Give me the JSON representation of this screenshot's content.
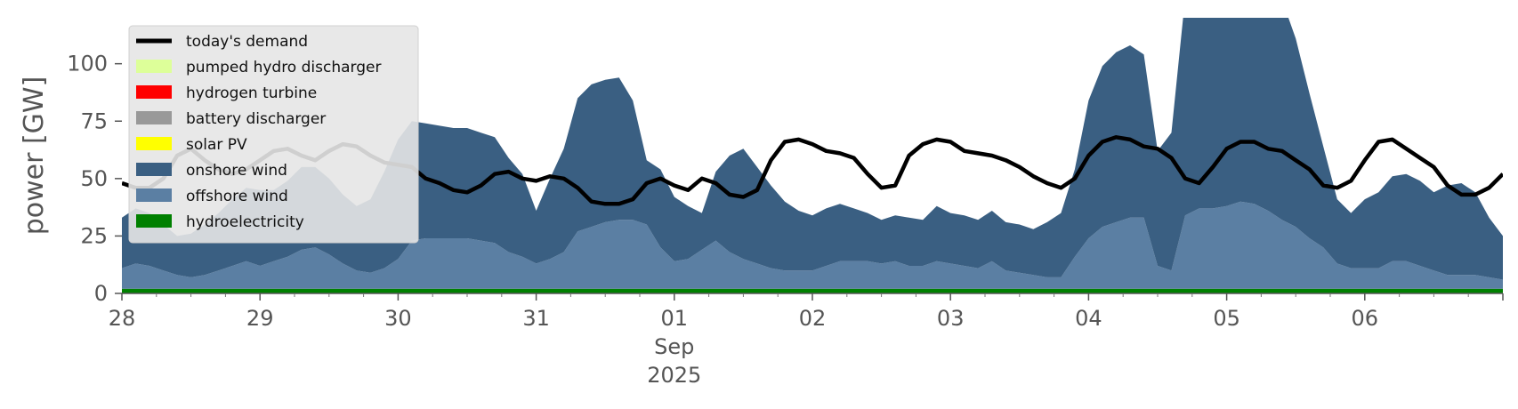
{
  "chart_data": {
    "type": "area",
    "ylabel": "power [GW]",
    "ylim": [
      0,
      120
    ],
    "x_unit": "day (Aug 28 2025 = 0)",
    "xlim": [
      0,
      10
    ],
    "yticks": [
      0,
      25,
      50,
      75,
      100
    ],
    "xticks": [
      {
        "x": 0,
        "label": "28"
      },
      {
        "x": 1,
        "label": "29"
      },
      {
        "x": 2,
        "label": "30"
      },
      {
        "x": 3,
        "label": "31"
      },
      {
        "x": 4,
        "label": "01",
        "sub": [
          "Sep",
          "2025"
        ]
      },
      {
        "x": 5,
        "label": "02"
      },
      {
        "x": 6,
        "label": "03"
      },
      {
        "x": 7,
        "label": "04"
      },
      {
        "x": 8,
        "label": "05"
      },
      {
        "x": 9,
        "label": "06"
      }
    ],
    "legend_position": "upper-left",
    "x": [
      0,
      0.1,
      0.2,
      0.3,
      0.4,
      0.5,
      0.6,
      0.7,
      0.8,
      0.9,
      1,
      1.1,
      1.2,
      1.3,
      1.4,
      1.5,
      1.6,
      1.7,
      1.8,
      1.9,
      2,
      2.1,
      2.2,
      2.3,
      2.4,
      2.5,
      2.6,
      2.7,
      2.8,
      2.9,
      3,
      3.1,
      3.2,
      3.3,
      3.4,
      3.5,
      3.6,
      3.7,
      3.8,
      3.9,
      4,
      4.1,
      4.2,
      4.3,
      4.4,
      4.5,
      4.6,
      4.7,
      4.8,
      4.9,
      5,
      5.1,
      5.2,
      5.3,
      5.4,
      5.5,
      5.6,
      5.7,
      5.8,
      5.9,
      6,
      6.1,
      6.2,
      6.3,
      6.4,
      6.5,
      6.6,
      6.7,
      6.8,
      6.9,
      7,
      7.1,
      7.2,
      7.3,
      7.4,
      7.5,
      7.6,
      7.7,
      7.8,
      7.9,
      8,
      8.1,
      8.2,
      8.3,
      8.4,
      8.5,
      8.6,
      8.7,
      8.8,
      8.9,
      9,
      9.1,
      9.2,
      9.3,
      9.4,
      9.5,
      9.6,
      9.7,
      9.8,
      9.9,
      10
    ],
    "series": [
      {
        "name": "hydroelectricity",
        "color": "#008000",
        "values": [
          2,
          2,
          2,
          2,
          2,
          2,
          2,
          2,
          2,
          2,
          2,
          2,
          2,
          2,
          2,
          2,
          2,
          2,
          2,
          2,
          2,
          2,
          2,
          2,
          2,
          2,
          2,
          2,
          2,
          2,
          2,
          2,
          2,
          2,
          2,
          2,
          2,
          2,
          2,
          2,
          2,
          2,
          2,
          2,
          2,
          2,
          2,
          2,
          2,
          2,
          2,
          2,
          2,
          2,
          2,
          2,
          2,
          2,
          2,
          2,
          2,
          2,
          2,
          2,
          2,
          2,
          2,
          2,
          2,
          2,
          2,
          2,
          2,
          2,
          2,
          2,
          2,
          2,
          2,
          2,
          2,
          2,
          2,
          2,
          2,
          2,
          2,
          2,
          2,
          2,
          2,
          2,
          2,
          2,
          2,
          2,
          2,
          2,
          2,
          2,
          2
        ]
      },
      {
        "name": "offshore wind",
        "color": "#5b7fa3",
        "values": [
          9,
          11,
          10,
          8,
          6,
          5,
          6,
          8,
          10,
          12,
          10,
          12,
          14,
          17,
          18,
          15,
          11,
          8,
          7,
          9,
          13,
          21,
          22,
          22,
          22,
          22,
          21,
          20,
          16,
          14,
          11,
          13,
          16,
          25,
          27,
          29,
          30,
          30,
          28,
          18,
          12,
          13,
          17,
          21,
          16,
          13,
          11,
          9,
          8,
          8,
          8,
          10,
          12,
          12,
          12,
          11,
          12,
          10,
          10,
          12,
          11,
          10,
          9,
          12,
          8,
          7,
          6,
          5,
          5,
          14,
          22,
          27,
          29,
          31,
          31,
          10,
          8,
          32,
          35,
          35,
          36,
          38,
          37,
          34,
          30,
          27,
          22,
          18,
          11,
          9,
          9,
          9,
          12,
          12,
          10,
          8,
          6,
          6,
          6,
          5,
          4
        ]
      },
      {
        "name": "onshore wind",
        "color": "#3a5f82",
        "values": [
          22,
          24,
          23,
          20,
          17,
          19,
          22,
          25,
          29,
          32,
          33,
          31,
          33,
          36,
          35,
          33,
          30,
          28,
          32,
          42,
          52,
          52,
          50,
          49,
          48,
          48,
          47,
          46,
          41,
          36,
          23,
          35,
          45,
          58,
          62,
          62,
          62,
          52,
          28,
          34,
          28,
          23,
          16,
          30,
          42,
          48,
          42,
          36,
          30,
          26,
          24,
          25,
          25,
          23,
          21,
          19,
          20,
          21,
          20,
          24,
          22,
          22,
          21,
          22,
          21,
          21,
          20,
          24,
          28,
          38,
          60,
          70,
          74,
          75,
          71,
          50,
          60,
          95,
          100,
          100,
          108,
          116,
          114,
          108,
          96,
          82,
          63,
          44,
          28,
          24,
          30,
          33,
          37,
          38,
          37,
          34,
          39,
          40,
          36,
          26,
          19
        ]
      },
      {
        "name": "solar PV",
        "color": "#ffff00",
        "values": [
          0,
          0,
          0,
          0,
          0,
          0,
          0,
          0,
          0,
          0,
          0,
          0,
          0,
          0,
          0,
          0,
          0,
          0,
          0,
          0,
          0,
          0,
          0,
          0,
          0,
          0,
          0,
          0,
          0,
          0,
          0,
          0,
          0,
          0,
          0,
          0,
          0,
          0,
          0,
          0,
          0,
          0,
          0,
          0,
          0,
          0,
          0,
          0,
          0,
          0,
          0,
          0,
          0,
          0,
          0,
          0,
          0,
          0,
          0,
          0,
          0,
          0,
          0,
          0,
          0,
          0,
          0,
          0,
          0,
          0,
          0,
          0,
          0,
          0,
          0,
          0,
          0,
          0,
          0,
          0,
          0,
          0,
          0,
          0,
          0,
          0,
          0,
          0,
          0,
          0,
          0,
          0,
          0,
          0,
          0,
          0,
          0,
          0,
          0,
          0,
          0
        ]
      },
      {
        "name": "battery discharger",
        "color": "#999999",
        "values": [
          0,
          0,
          0,
          0,
          0,
          0,
          0,
          0,
          0,
          0,
          0,
          0,
          0,
          0,
          0,
          0,
          0,
          0,
          0,
          0,
          0,
          0,
          0,
          0,
          0,
          0,
          0,
          0,
          0,
          0,
          0,
          0,
          0,
          0,
          0,
          0,
          0,
          0,
          0,
          0,
          0,
          0,
          0,
          0,
          0,
          0,
          0,
          0,
          0,
          0,
          0,
          0,
          0,
          0,
          0,
          0,
          0,
          0,
          0,
          0,
          0,
          0,
          0,
          0,
          0,
          0,
          0,
          0,
          0,
          0,
          0,
          0,
          0,
          0,
          0,
          0,
          0,
          0,
          0,
          0,
          0,
          0,
          0,
          0,
          0,
          0,
          0,
          0,
          0,
          0,
          0,
          0,
          0,
          0,
          0,
          0,
          0,
          0,
          0,
          0,
          0
        ]
      },
      {
        "name": "hydrogen turbine",
        "color": "#ff0000",
        "values": [
          0,
          0,
          0,
          0,
          0,
          0,
          0,
          0,
          0,
          0,
          0,
          0,
          0,
          0,
          0,
          0,
          0,
          0,
          0,
          0,
          0,
          0,
          0,
          0,
          0,
          0,
          0,
          0,
          0,
          0,
          0,
          0,
          0,
          0,
          0,
          0,
          0,
          0,
          0,
          0,
          0,
          0,
          0,
          0,
          0,
          0,
          0,
          0,
          0,
          0,
          0,
          0,
          0,
          0,
          0,
          0,
          0,
          0,
          0,
          0,
          0,
          0,
          0,
          0,
          0,
          0,
          0,
          0,
          0,
          0,
          0,
          0,
          0,
          0,
          0,
          0,
          0,
          0,
          0,
          0,
          0,
          0,
          0,
          0,
          0,
          0,
          0,
          0,
          0,
          0,
          0,
          0,
          0,
          0,
          0,
          0,
          0,
          0,
          0,
          0,
          0
        ]
      },
      {
        "name": "pumped hydro discharger",
        "color": "#ddff99",
        "values": [
          0,
          0,
          0,
          0,
          0,
          0,
          0,
          0,
          0,
          0,
          0,
          0,
          0,
          0,
          0,
          0,
          0,
          0,
          0,
          0,
          0,
          0,
          0,
          0,
          0,
          0,
          0,
          0,
          0,
          0,
          0,
          0,
          0,
          0,
          0,
          0,
          0,
          0,
          0,
          0,
          0,
          0,
          0,
          0,
          0,
          0,
          0,
          0,
          0,
          0,
          0,
          0,
          0,
          0,
          0,
          0,
          0,
          0,
          0,
          0,
          0,
          0,
          0,
          0,
          0,
          0,
          0,
          0,
          0,
          0,
          0,
          0,
          0,
          0,
          0,
          0,
          0,
          0,
          0,
          0,
          0,
          0,
          0,
          0,
          0,
          0,
          0,
          0,
          0,
          0,
          0,
          0,
          0,
          0,
          0,
          0,
          0,
          0,
          0,
          0,
          0
        ]
      }
    ],
    "demand": {
      "name": "today's demand",
      "color": "#000000",
      "values": [
        48,
        46,
        46,
        50,
        60,
        63,
        58,
        54,
        52,
        54,
        58,
        62,
        63,
        60,
        58,
        62,
        65,
        64,
        60,
        57,
        56,
        55,
        50,
        48,
        45,
        44,
        47,
        52,
        53,
        50,
        49,
        51,
        50,
        46,
        40,
        39,
        39,
        41,
        48,
        50,
        47,
        45,
        50,
        48,
        43,
        42,
        45,
        58,
        66,
        67,
        65,
        62,
        61,
        59,
        52,
        46,
        47,
        60,
        65,
        67,
        66,
        62,
        61,
        60,
        58,
        55,
        51,
        48,
        46,
        50,
        60,
        66,
        68,
        67,
        64,
        63,
        59,
        50,
        48,
        55,
        63,
        66,
        66,
        63,
        62,
        58,
        54,
        47,
        46,
        49,
        58,
        66,
        67,
        63,
        59,
        55,
        47,
        43,
        43,
        46,
        52
      ]
    },
    "legend": [
      {
        "label": "today's demand",
        "color": "#000000",
        "kind": "line"
      },
      {
        "label": "pumped hydro discharger",
        "color": "#ddff99",
        "kind": "patch"
      },
      {
        "label": "hydrogen turbine",
        "color": "#ff0000",
        "kind": "patch"
      },
      {
        "label": "battery discharger",
        "color": "#999999",
        "kind": "patch"
      },
      {
        "label": "solar PV",
        "color": "#ffff00",
        "kind": "patch"
      },
      {
        "label": "onshore wind",
        "color": "#3a5f82",
        "kind": "patch"
      },
      {
        "label": "offshore wind",
        "color": "#5b7fa3",
        "kind": "patch"
      },
      {
        "label": "hydroelectricity",
        "color": "#008000",
        "kind": "patch"
      }
    ]
  }
}
